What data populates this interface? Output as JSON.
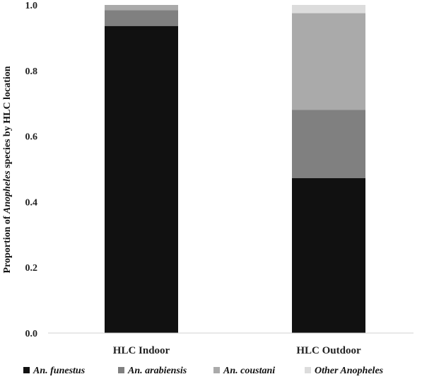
{
  "chart_data": {
    "type": "bar",
    "stacked": true,
    "categories": [
      "HLC Indoor",
      "HLC Outdoor"
    ],
    "series": [
      {
        "name": "An. funestus",
        "values": [
          0.936,
          0.472
        ],
        "color": "#111111"
      },
      {
        "name": "An. arabiensis",
        "values": [
          0.048,
          0.208
        ],
        "color": "#808080"
      },
      {
        "name": "An. coustani",
        "values": [
          0.016,
          0.295
        ],
        "color": "#aaaaaa"
      },
      {
        "name": "Other Anopheles",
        "values": [
          0.0,
          0.025
        ],
        "color": "#dcdcdc"
      }
    ],
    "ylabel_parts": [
      {
        "text": "Proportion  of ",
        "italic": false
      },
      {
        "text": "Anopheles",
        "italic": true
      },
      {
        "text": " species by HLC location",
        "italic": false
      }
    ],
    "ylim": [
      0,
      1.0
    ],
    "yticks": [
      "0.0",
      "0.2",
      "0.4",
      "0.6",
      "0.8",
      "1.0"
    ],
    "ytick_values": [
      0,
      0.2,
      0.4,
      0.6,
      0.8,
      1.0
    ],
    "grid": false,
    "legend_position": "bottom"
  }
}
